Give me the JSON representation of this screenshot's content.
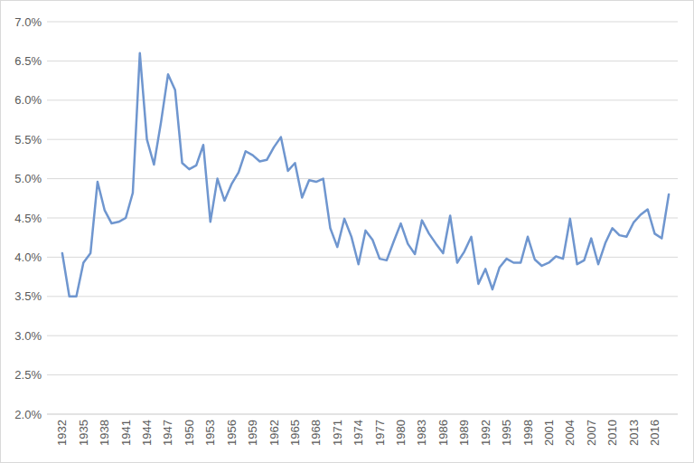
{
  "chart_data": {
    "type": "line",
    "categories": [
      "1932",
      null,
      null,
      "1935",
      null,
      null,
      "1938",
      null,
      null,
      "1941",
      null,
      null,
      "1944",
      null,
      null,
      "1947",
      null,
      null,
      "1950",
      null,
      null,
      "1953",
      null,
      null,
      "1956",
      null,
      null,
      "1959",
      null,
      null,
      "1962",
      null,
      null,
      "1965",
      null,
      null,
      "1968",
      null,
      null,
      "1971",
      null,
      null,
      "1974",
      null,
      null,
      "1977",
      null,
      null,
      "1980",
      null,
      null,
      "1983",
      null,
      null,
      "1986",
      null,
      null,
      "1989",
      null,
      null,
      "1992",
      null,
      null,
      "1995",
      null,
      null,
      "1998",
      null,
      null,
      "2001",
      null,
      null,
      "2004",
      null,
      null,
      "2007",
      null,
      null,
      "2010",
      null,
      null,
      "2013",
      null,
      null,
      "2016",
      null,
      null
    ],
    "values": [
      4.05,
      3.5,
      3.5,
      3.93,
      4.05,
      4.96,
      4.6,
      4.43,
      4.45,
      4.5,
      4.82,
      6.6,
      5.5,
      5.18,
      5.72,
      6.33,
      6.13,
      5.2,
      5.12,
      5.17,
      5.43,
      4.45,
      5.0,
      4.72,
      4.93,
      5.08,
      5.35,
      5.3,
      5.22,
      5.24,
      5.4,
      5.53,
      5.1,
      5.2,
      4.76,
      4.98,
      4.96,
      5.0,
      4.37,
      4.13,
      4.49,
      4.26,
      3.91,
      4.34,
      4.22,
      3.98,
      3.96,
      4.2,
      4.43,
      4.17,
      4.04,
      4.47,
      4.3,
      4.17,
      4.05,
      4.53,
      3.93,
      4.07,
      4.26,
      3.66,
      3.85,
      3.59,
      3.87,
      3.98,
      3.93,
      3.93,
      4.26,
      3.97,
      3.89,
      3.93,
      4.01,
      3.98,
      4.49,
      3.91,
      3.96,
      4.24,
      3.91,
      4.18,
      4.37,
      4.28,
      4.26,
      4.44,
      4.54,
      4.61,
      4.3,
      4.24,
      4.8
    ],
    "color": "#6f96cf",
    "ylim": [
      2,
      7
    ],
    "yticks": [
      {
        "value": 2,
        "label": "2.0%"
      },
      {
        "value": 2.5,
        "label": "2.5%"
      },
      {
        "value": 3,
        "label": "3.0%"
      },
      {
        "value": 3.5,
        "label": "3.5%"
      },
      {
        "value": 4,
        "label": "4.0%"
      },
      {
        "value": 4.5,
        "label": "4.5%"
      },
      {
        "value": 5,
        "label": "5.0%"
      },
      {
        "value": 5.5,
        "label": "5.5%"
      },
      {
        "value": 6,
        "label": "6.0%"
      },
      {
        "value": 6.5,
        "label": "6.5%"
      },
      {
        "value": 7,
        "label": "7.0%"
      }
    ],
    "grid": true
  }
}
